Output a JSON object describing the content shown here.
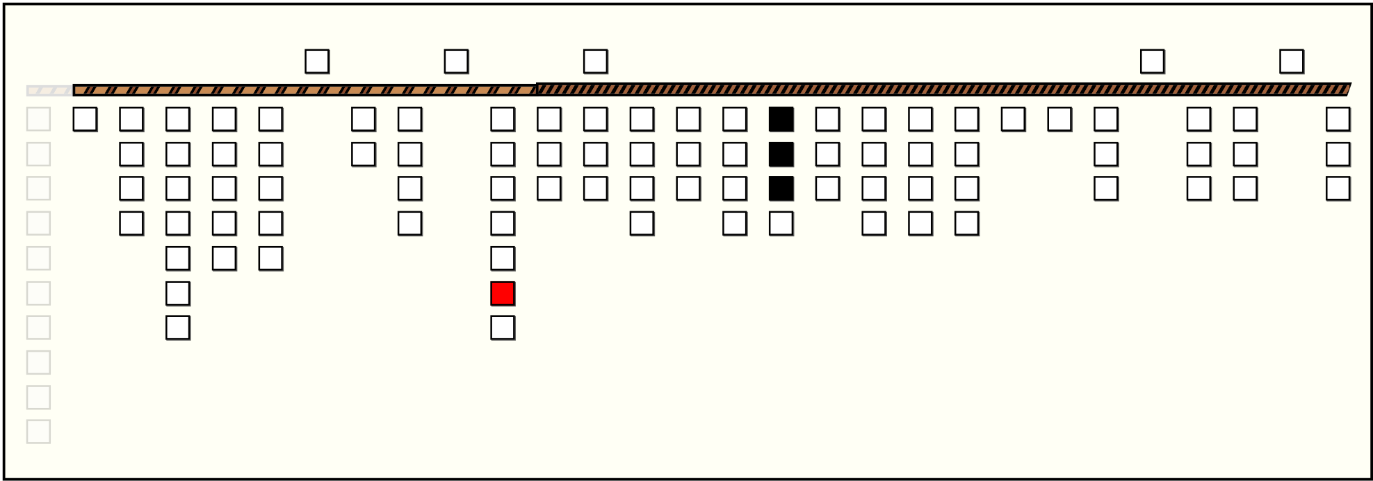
{
  "game": {
    "colors": {
      "background": "#fffff5",
      "cell": "#ffffff",
      "cell_border": "#000000",
      "filled": "#000000",
      "highlight": "#ff0000",
      "ghost": "#d8d8d0",
      "bar_left": "#c88a52",
      "bar_right": "#a0603a"
    },
    "top_row": [
      5,
      8,
      11,
      23,
      26
    ],
    "ghost_column": {
      "col": -1,
      "cells": 10
    },
    "columns": [
      {
        "col": 0,
        "cells": [
          "empty"
        ]
      },
      {
        "col": 1,
        "cells": [
          "empty",
          "empty",
          "empty",
          "empty"
        ]
      },
      {
        "col": 2,
        "cells": [
          "empty",
          "empty",
          "empty",
          "empty",
          "empty",
          "empty",
          "empty"
        ]
      },
      {
        "col": 3,
        "cells": [
          "empty",
          "empty",
          "empty",
          "empty",
          "empty"
        ]
      },
      {
        "col": 4,
        "cells": [
          "empty",
          "empty",
          "empty",
          "empty",
          "empty"
        ]
      },
      {
        "col": 6,
        "cells": [
          "empty",
          "empty"
        ]
      },
      {
        "col": 7,
        "cells": [
          "empty",
          "empty",
          "empty",
          "empty"
        ]
      },
      {
        "col": 9,
        "cells": [
          "empty",
          "empty",
          "empty",
          "empty",
          "empty",
          "red",
          "empty"
        ]
      },
      {
        "col": 10,
        "cells": [
          "empty",
          "empty",
          "empty"
        ]
      },
      {
        "col": 11,
        "cells": [
          "empty",
          "empty",
          "empty"
        ]
      },
      {
        "col": 12,
        "cells": [
          "empty",
          "empty",
          "empty",
          "empty"
        ]
      },
      {
        "col": 13,
        "cells": [
          "empty",
          "empty",
          "empty"
        ]
      },
      {
        "col": 14,
        "cells": [
          "empty",
          "empty",
          "empty",
          "empty"
        ]
      },
      {
        "col": 15,
        "cells": [
          "black",
          "black",
          "black",
          "empty"
        ]
      },
      {
        "col": 16,
        "cells": [
          "empty",
          "empty",
          "empty"
        ]
      },
      {
        "col": 17,
        "cells": [
          "empty",
          "empty",
          "empty",
          "empty"
        ]
      },
      {
        "col": 18,
        "cells": [
          "empty",
          "empty",
          "empty",
          "empty"
        ]
      },
      {
        "col": 19,
        "cells": [
          "empty",
          "empty",
          "empty",
          "empty"
        ]
      },
      {
        "col": 20,
        "cells": [
          "empty"
        ]
      },
      {
        "col": 21,
        "cells": [
          "empty"
        ]
      },
      {
        "col": 22,
        "cells": [
          "empty",
          "empty",
          "empty"
        ]
      },
      {
        "col": 24,
        "cells": [
          "empty",
          "empty",
          "empty"
        ]
      },
      {
        "col": 25,
        "cells": [
          "empty",
          "empty",
          "empty"
        ]
      },
      {
        "col": 27,
        "cells": [
          "empty",
          "empty",
          "empty"
        ]
      }
    ]
  }
}
